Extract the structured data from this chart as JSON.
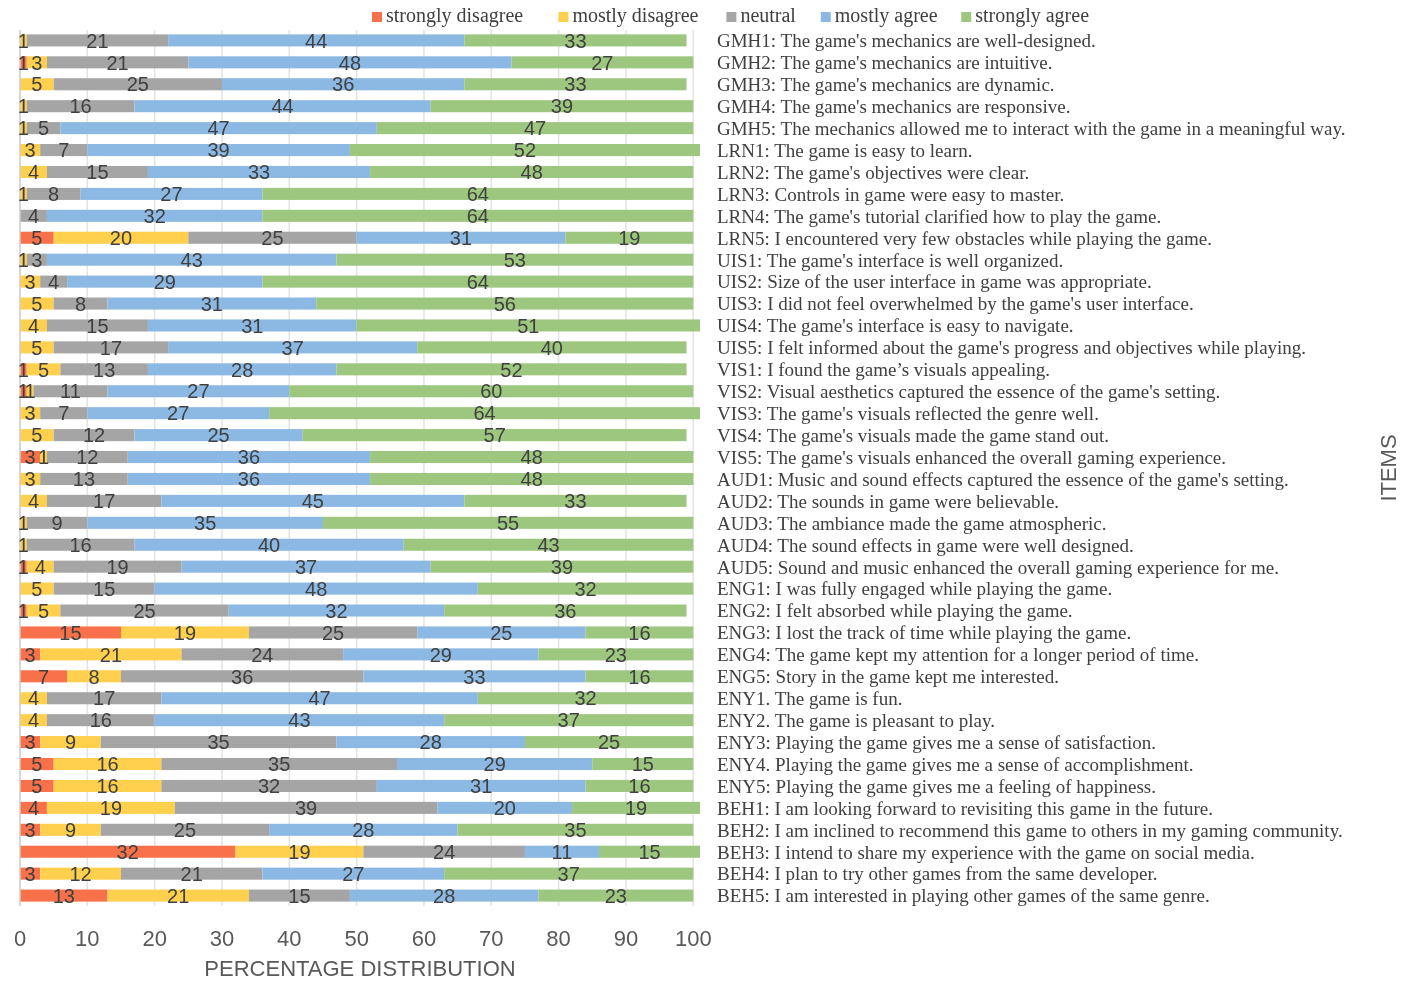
{
  "chart_data": {
    "type": "bar",
    "orientation": "horizontal",
    "stacked": true,
    "data_labels": true,
    "grid": "x",
    "legend": "top right",
    "xlabel": "PERCENTAGE DISTRIBUTION",
    "ylabel": "ITEMS",
    "xlim": [
      0,
      101
    ],
    "xticks": [
      0,
      10,
      20,
      30,
      40,
      50,
      60,
      70,
      80,
      90,
      100
    ],
    "categories": [
      "GMH1: The game's mechanics are well-designed.",
      "GMH2: The game's mechanics are intuitive.",
      "GMH3: The game's mechanics are dynamic.",
      "GMH4: The game's mechanics are responsive.",
      "GMH5: The mechanics allowed me to interact with the game in a meaningful way.",
      "LRN1: The game is easy to learn.",
      "LRN2: The game's objectives were clear.",
      "LRN3: Controls in game were easy to master.",
      "LRN4: The game's tutorial clarified how to play the game.",
      "LRN5: I encountered very few obstacles while playing the game.",
      "UIS1: The game's interface is well organized.",
      "UIS2: Size of the user interface in game was appropriate.",
      "UIS3: I did not feel overwhelmed by the game's user interface.",
      "UIS4: The game's interface is easy to navigate.",
      "UIS5: I felt informed about the game's progress and objectives while playing.",
      "VIS1: I found the game’s visuals appealing.",
      "VIS2: Visual aesthetics captured the essence of the game's setting.",
      "VIS3: The game's visuals reflected the genre well.",
      "VIS4: The game's visuals made the game stand out.",
      "VIS5: The game's visuals enhanced the overall gaming experience.",
      "AUD1: Music and sound effects captured the essence of the game's setting.",
      "AUD2: The sounds in game were believable.",
      "AUD3: The ambiance made the game atmospheric.",
      "AUD4: The sound effects in game were well designed.",
      "AUD5: Sound and music enhanced the overall gaming experience for me.",
      "ENG1: I was fully engaged while playing the game.",
      "ENG2: I felt absorbed while playing the game.",
      "ENG3: I lost the track of time while playing the game.",
      "ENG4: The game kept my attention for a longer period of time.",
      "ENG5: Story in the game kept me interested.",
      "ENY1. The game is fun.",
      "ENY2. The game is pleasant to play.",
      "ENY3: Playing the game gives me a sense of satisfaction.",
      "ENY4. Playing the game gives me a sense of accomplishment.",
      "ENY5: Playing the game gives me a feeling of happiness.",
      "BEH1: I am looking forward to revisiting this game in the future.",
      "BEH2: I am inclined to recommend this game to others in my gaming community.",
      "BEH3: I intend to share my experience with the game on social media.",
      "BEH4: I plan to try other games from the same developer.",
      "BEH5: I am interested in playing other games of the same genre."
    ],
    "series": [
      {
        "name": "strongly disagree",
        "color": "#f8714a",
        "values": [
          null,
          1,
          null,
          null,
          null,
          null,
          null,
          null,
          null,
          5,
          null,
          null,
          null,
          null,
          null,
          1,
          1,
          null,
          null,
          3,
          null,
          null,
          null,
          null,
          1,
          null,
          1,
          15,
          3,
          7,
          null,
          null,
          3,
          5,
          5,
          4,
          3,
          32,
          3,
          13
        ]
      },
      {
        "name": "mostly disagree",
        "color": "#ffd04d",
        "values": [
          1,
          3,
          5,
          1,
          1,
          3,
          4,
          1,
          null,
          20,
          1,
          3,
          5,
          4,
          5,
          5,
          1,
          3,
          5,
          1,
          3,
          4,
          1,
          1,
          4,
          5,
          5,
          19,
          21,
          8,
          4,
          4,
          9,
          16,
          16,
          19,
          9,
          19,
          12,
          21
        ]
      },
      {
        "name": "neutral",
        "color": "#a5a5a5",
        "values": [
          21,
          21,
          25,
          16,
          5,
          7,
          15,
          8,
          4,
          25,
          3,
          4,
          8,
          15,
          17,
          13,
          11,
          7,
          12,
          12,
          13,
          17,
          9,
          16,
          19,
          15,
          25,
          25,
          24,
          36,
          17,
          16,
          35,
          35,
          32,
          39,
          25,
          24,
          21,
          15
        ]
      },
      {
        "name": "mostly agree",
        "color": "#8cb9e3",
        "values": [
          44,
          48,
          36,
          44,
          47,
          39,
          33,
          27,
          32,
          31,
          43,
          29,
          31,
          31,
          37,
          28,
          27,
          27,
          25,
          36,
          36,
          45,
          35,
          40,
          37,
          48,
          32,
          25,
          29,
          33,
          47,
          43,
          28,
          29,
          31,
          20,
          28,
          11,
          27,
          28
        ]
      },
      {
        "name": "strongly agree",
        "color": "#9dc77e",
        "values": [
          33,
          27,
          33,
          39,
          47,
          52,
          48,
          64,
          64,
          19,
          53,
          64,
          56,
          51,
          40,
          52,
          60,
          64,
          57,
          48,
          48,
          33,
          55,
          43,
          39,
          32,
          36,
          16,
          23,
          16,
          32,
          37,
          25,
          15,
          16,
          19,
          35,
          15,
          37,
          23
        ]
      }
    ]
  }
}
